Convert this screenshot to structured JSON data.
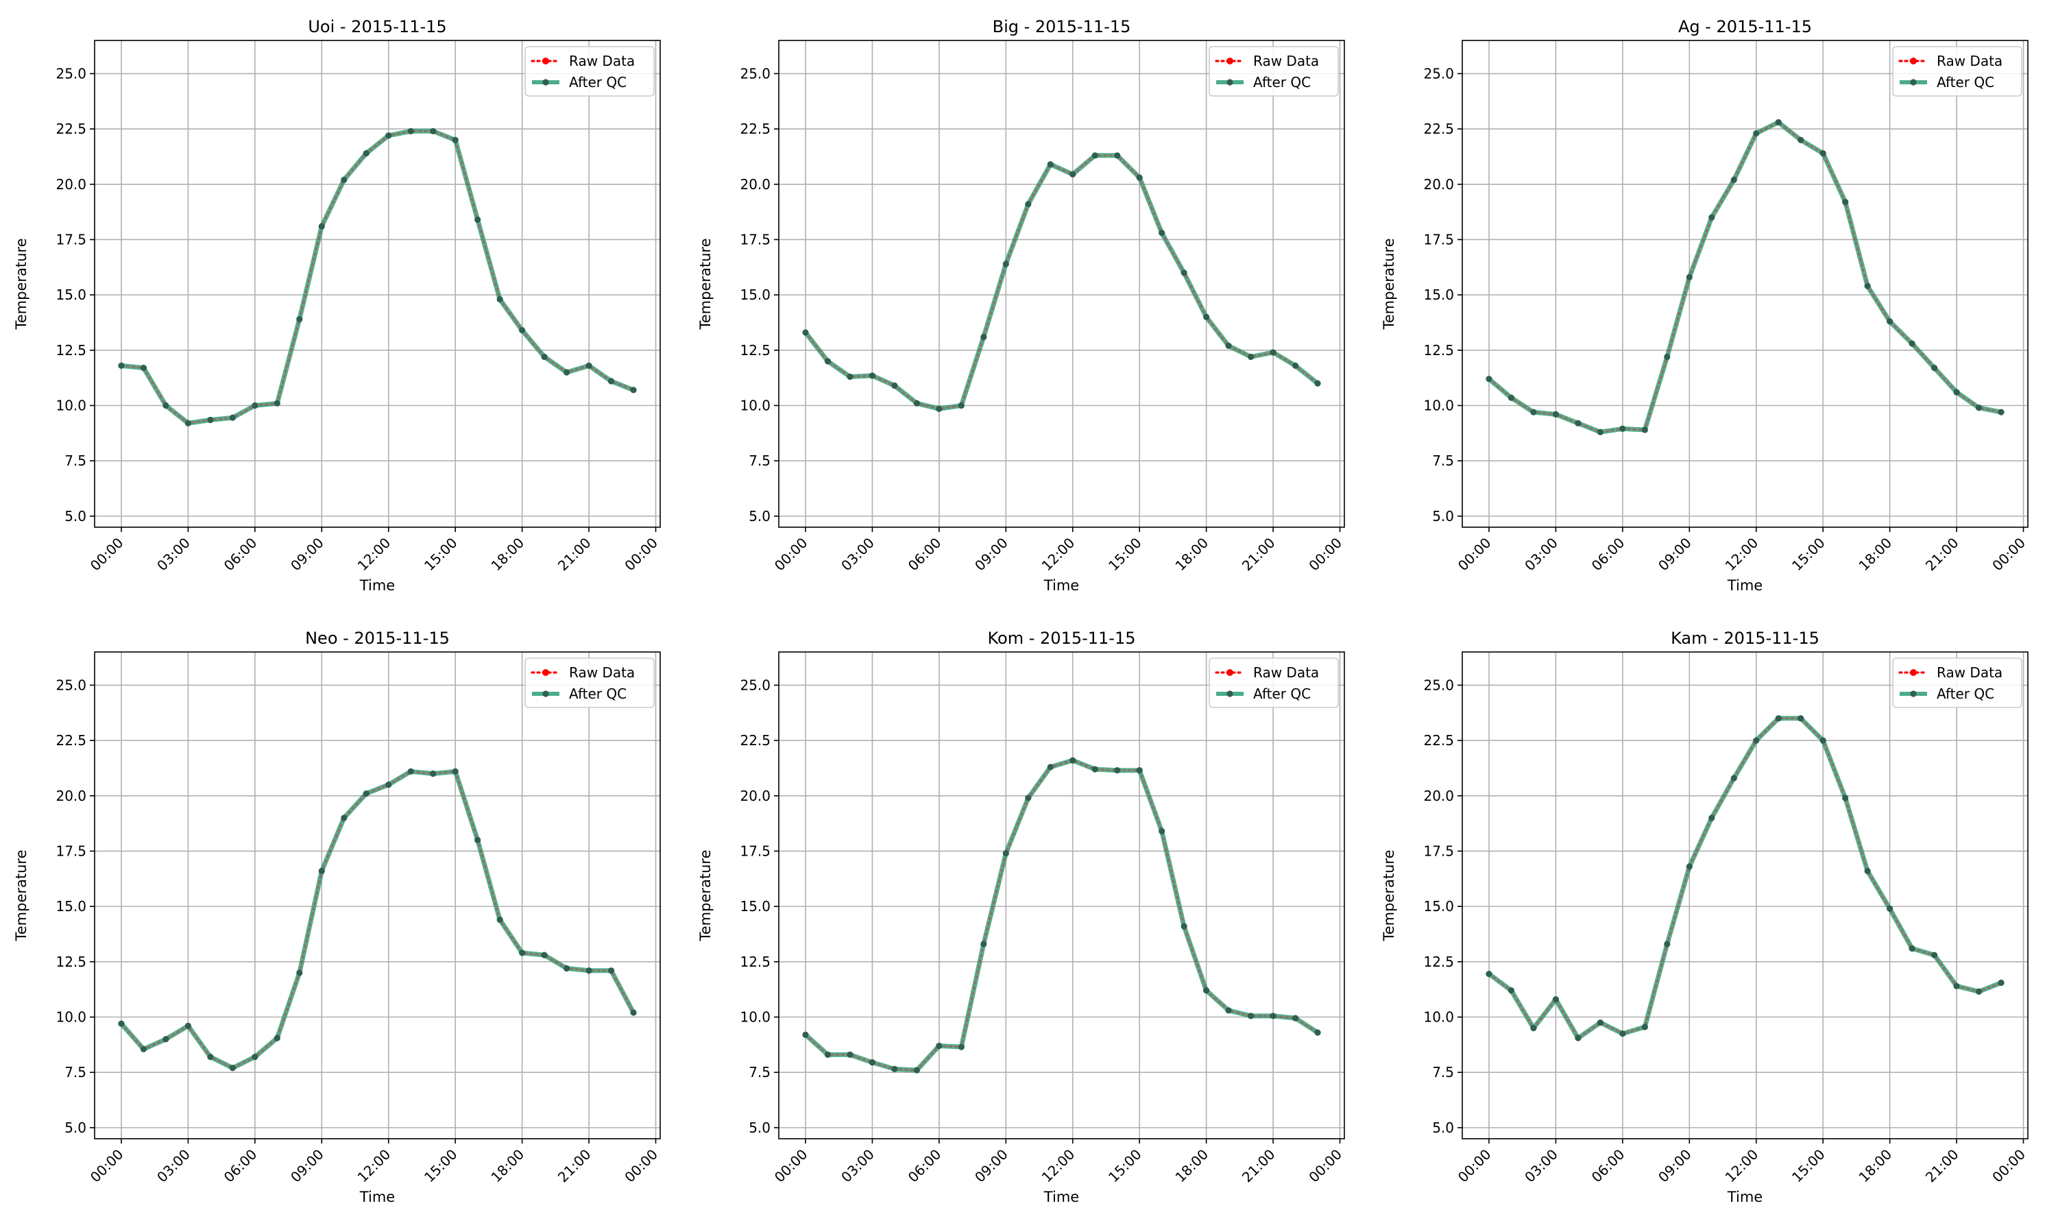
{
  "figure": {
    "colors": {
      "raw": "#ff0000",
      "qc": "#2a9d78",
      "marker": "#2f5f50",
      "grid": "#b0b0b0"
    }
  },
  "chart_data": [
    {
      "type": "line",
      "title": "Uoi - 2015-11-15",
      "xlabel": "Time",
      "ylabel": "Temperature",
      "xticks": [
        "00:00",
        "03:00",
        "06:00",
        "09:00",
        "12:00",
        "15:00",
        "18:00",
        "21:00",
        "00:00"
      ],
      "xlim_hours": [
        -1.2,
        24.2
      ],
      "ylim": [
        4.5,
        26.5
      ],
      "yticks": [
        "5.0",
        "7.5",
        "10.0",
        "12.5",
        "15.0",
        "17.5",
        "20.0",
        "22.5",
        "25.0"
      ],
      "grid": true,
      "legend": "top-right",
      "x_hours": [
        0,
        1,
        2,
        3,
        4,
        5,
        6,
        7,
        8,
        9,
        10,
        11,
        12,
        13,
        14,
        15,
        16,
        17,
        18,
        19,
        20,
        21,
        22,
        23
      ],
      "series": [
        {
          "name": "Raw Data",
          "values": [
            11.8,
            11.7,
            10.0,
            9.2,
            9.35,
            9.45,
            10.0,
            10.1,
            13.9,
            18.1,
            20.2,
            21.4,
            22.2,
            22.4,
            22.4,
            22.0,
            18.4,
            14.8,
            13.4,
            12.2,
            11.5,
            11.8,
            11.1,
            10.7
          ]
        },
        {
          "name": "After QC",
          "values": [
            11.8,
            11.7,
            10.0,
            9.2,
            9.35,
            9.45,
            10.0,
            10.1,
            13.9,
            18.1,
            20.2,
            21.4,
            22.2,
            22.4,
            22.4,
            22.0,
            18.4,
            14.8,
            13.4,
            12.2,
            11.5,
            11.8,
            11.1,
            10.7
          ]
        }
      ]
    },
    {
      "type": "line",
      "title": "Big - 2015-11-15",
      "xlabel": "Time",
      "ylabel": "Temperature",
      "xticks": [
        "00:00",
        "03:00",
        "06:00",
        "09:00",
        "12:00",
        "15:00",
        "18:00",
        "21:00",
        "00:00"
      ],
      "xlim_hours": [
        -1.2,
        24.2
      ],
      "ylim": [
        4.5,
        26.5
      ],
      "yticks": [
        "5.0",
        "7.5",
        "10.0",
        "12.5",
        "15.0",
        "17.5",
        "20.0",
        "22.5",
        "25.0"
      ],
      "grid": true,
      "legend": "top-right",
      "x_hours": [
        0,
        1,
        2,
        3,
        4,
        5,
        6,
        7,
        8,
        9,
        10,
        11,
        12,
        13,
        14,
        15,
        16,
        17,
        18,
        19,
        20,
        21,
        22,
        23
      ],
      "series": [
        {
          "name": "Raw Data",
          "values": [
            13.3,
            12.0,
            11.3,
            11.35,
            10.9,
            10.1,
            9.85,
            10.0,
            13.1,
            16.4,
            19.1,
            20.9,
            20.45,
            21.3,
            21.3,
            20.3,
            17.8,
            16.0,
            14.0,
            12.7,
            12.2,
            12.4,
            11.8,
            11.0
          ]
        },
        {
          "name": "After QC",
          "values": [
            13.3,
            12.0,
            11.3,
            11.35,
            10.9,
            10.1,
            9.85,
            10.0,
            13.1,
            16.4,
            19.1,
            20.9,
            20.45,
            21.3,
            21.3,
            20.3,
            17.8,
            16.0,
            14.0,
            12.7,
            12.2,
            12.4,
            11.8,
            11.0
          ]
        }
      ]
    },
    {
      "type": "line",
      "title": "Ag - 2015-11-15",
      "xlabel": "Time",
      "ylabel": "Temperature",
      "xticks": [
        "00:00",
        "03:00",
        "06:00",
        "09:00",
        "12:00",
        "15:00",
        "18:00",
        "21:00",
        "00:00"
      ],
      "xlim_hours": [
        -1.2,
        24.2
      ],
      "ylim": [
        4.5,
        26.5
      ],
      "yticks": [
        "5.0",
        "7.5",
        "10.0",
        "12.5",
        "15.0",
        "17.5",
        "20.0",
        "22.5",
        "25.0"
      ],
      "grid": true,
      "legend": "top-right",
      "x_hours": [
        0,
        1,
        2,
        3,
        4,
        5,
        6,
        7,
        8,
        9,
        10,
        11,
        12,
        13,
        14,
        15,
        16,
        17,
        18,
        19,
        20,
        21,
        22,
        23
      ],
      "series": [
        {
          "name": "Raw Data",
          "values": [
            11.2,
            10.35,
            9.7,
            9.6,
            9.2,
            8.8,
            8.95,
            8.9,
            12.2,
            15.8,
            18.5,
            20.2,
            22.3,
            22.8,
            22.0,
            21.4,
            19.2,
            15.4,
            13.8,
            12.8,
            11.7,
            10.6,
            9.9,
            9.7
          ]
        },
        {
          "name": "After QC",
          "values": [
            11.2,
            10.35,
            9.7,
            9.6,
            9.2,
            8.8,
            8.95,
            8.9,
            12.2,
            15.8,
            18.5,
            20.2,
            22.3,
            22.8,
            22.0,
            21.4,
            19.2,
            15.4,
            13.8,
            12.8,
            11.7,
            10.6,
            9.9,
            9.7
          ]
        }
      ]
    },
    {
      "type": "line",
      "title": "Neo - 2015-11-15",
      "xlabel": "Time",
      "ylabel": "Temperature",
      "xticks": [
        "00:00",
        "03:00",
        "06:00",
        "09:00",
        "12:00",
        "15:00",
        "18:00",
        "21:00",
        "00:00"
      ],
      "xlim_hours": [
        -1.2,
        24.2
      ],
      "ylim": [
        4.5,
        26.5
      ],
      "yticks": [
        "5.0",
        "7.5",
        "10.0",
        "12.5",
        "15.0",
        "17.5",
        "20.0",
        "22.5",
        "25.0"
      ],
      "grid": true,
      "legend": "top-right",
      "x_hours": [
        0,
        1,
        2,
        3,
        4,
        5,
        6,
        7,
        8,
        9,
        10,
        11,
        12,
        13,
        14,
        15,
        16,
        17,
        18,
        19,
        20,
        21,
        22,
        23
      ],
      "series": [
        {
          "name": "Raw Data",
          "values": [
            9.7,
            8.55,
            9.0,
            9.6,
            8.2,
            7.7,
            8.2,
            9.05,
            12.0,
            16.6,
            19.0,
            20.1,
            20.5,
            21.1,
            21.0,
            21.1,
            18.0,
            14.4,
            12.9,
            12.8,
            12.2,
            12.1,
            12.1,
            10.2
          ]
        },
        {
          "name": "After QC",
          "values": [
            9.7,
            8.55,
            9.0,
            9.6,
            8.2,
            7.7,
            8.2,
            9.05,
            12.0,
            16.6,
            19.0,
            20.1,
            20.5,
            21.1,
            21.0,
            21.1,
            18.0,
            14.4,
            12.9,
            12.8,
            12.2,
            12.1,
            12.1,
            10.2
          ]
        }
      ]
    },
    {
      "type": "line",
      "title": "Kom - 2015-11-15",
      "xlabel": "Time",
      "ylabel": "Temperature",
      "xticks": [
        "00:00",
        "03:00",
        "06:00",
        "09:00",
        "12:00",
        "15:00",
        "18:00",
        "21:00",
        "00:00"
      ],
      "xlim_hours": [
        -1.2,
        24.2
      ],
      "ylim": [
        4.5,
        26.5
      ],
      "yticks": [
        "5.0",
        "7.5",
        "10.0",
        "12.5",
        "15.0",
        "17.5",
        "20.0",
        "22.5",
        "25.0"
      ],
      "grid": true,
      "legend": "top-right",
      "x_hours": [
        0,
        1,
        2,
        3,
        4,
        5,
        6,
        7,
        8,
        9,
        10,
        11,
        12,
        13,
        14,
        15,
        16,
        17,
        18,
        19,
        20,
        21,
        22,
        23
      ],
      "series": [
        {
          "name": "Raw Data",
          "values": [
            9.2,
            8.3,
            8.3,
            7.95,
            7.65,
            7.6,
            8.7,
            8.65,
            13.3,
            17.4,
            19.9,
            21.3,
            21.6,
            21.2,
            21.15,
            21.15,
            18.4,
            14.1,
            11.2,
            10.3,
            10.05,
            10.05,
            9.95,
            9.3
          ]
        },
        {
          "name": "After QC",
          "values": [
            9.2,
            8.3,
            8.3,
            7.95,
            7.65,
            7.6,
            8.7,
            8.65,
            13.3,
            17.4,
            19.9,
            21.3,
            21.6,
            21.2,
            21.15,
            21.15,
            18.4,
            14.1,
            11.2,
            10.3,
            10.05,
            10.05,
            9.95,
            9.3
          ]
        }
      ]
    },
    {
      "type": "line",
      "title": "Kam - 2015-11-15",
      "xlabel": "Time",
      "ylabel": "Temperature",
      "xticks": [
        "00:00",
        "03:00",
        "06:00",
        "09:00",
        "12:00",
        "15:00",
        "18:00",
        "21:00",
        "00:00"
      ],
      "xlim_hours": [
        -1.2,
        24.2
      ],
      "ylim": [
        4.5,
        26.5
      ],
      "yticks": [
        "5.0",
        "7.5",
        "10.0",
        "12.5",
        "15.0",
        "17.5",
        "20.0",
        "22.5",
        "25.0"
      ],
      "grid": true,
      "legend": "top-right",
      "x_hours": [
        0,
        1,
        2,
        3,
        4,
        5,
        6,
        7,
        8,
        9,
        10,
        11,
        12,
        13,
        14,
        15,
        16,
        17,
        18,
        19,
        20,
        21,
        22,
        23
      ],
      "series": [
        {
          "name": "Raw Data",
          "values": [
            11.95,
            11.2,
            9.5,
            10.8,
            9.05,
            9.75,
            9.25,
            9.55,
            13.3,
            16.8,
            19.0,
            20.8,
            22.5,
            23.5,
            23.5,
            22.5,
            19.9,
            16.6,
            14.9,
            13.1,
            12.8,
            11.4,
            11.15,
            11.55
          ]
        },
        {
          "name": "After QC",
          "values": [
            11.95,
            11.2,
            9.5,
            10.8,
            9.05,
            9.75,
            9.25,
            9.55,
            13.3,
            16.8,
            19.0,
            20.8,
            22.5,
            23.5,
            23.5,
            22.5,
            19.9,
            16.6,
            14.9,
            13.1,
            12.8,
            11.4,
            11.15,
            11.55
          ]
        }
      ]
    }
  ]
}
